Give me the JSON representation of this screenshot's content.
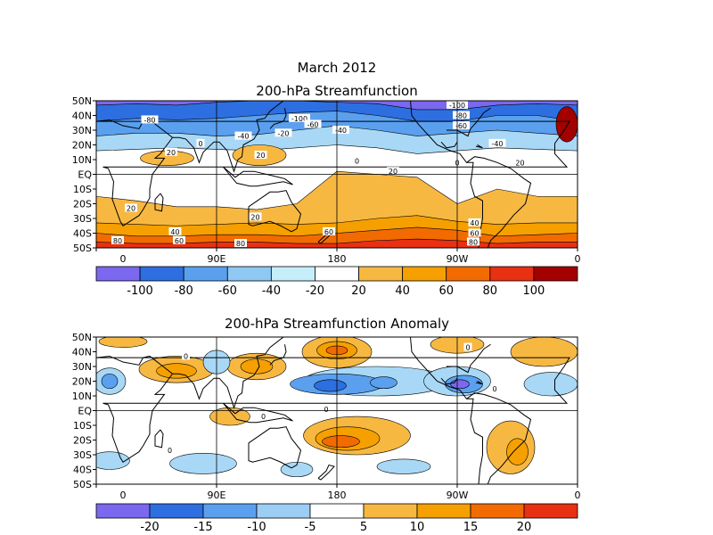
{
  "title": "March 2012",
  "colors": {
    "c1": "#7b68ee",
    "c2": "#2d6fe0",
    "c3": "#5aa0ef",
    "c4": "#a8d8f6",
    "c5": "#ffffff",
    "c6": "#f7b842",
    "c7": "#f5a000",
    "c8": "#f26b00",
    "c9": "#e83012",
    "c10": "#a30000",
    "coast": "#000000",
    "grid": "#000000"
  },
  "maps": [
    {
      "title": "200-hPa Streamfunction",
      "lat_labels": [
        "50N",
        "40N",
        "30N",
        "20N",
        "10N",
        "EQ",
        "10S",
        "20S",
        "30S",
        "40S",
        "50S"
      ],
      "lon_labels": [
        "0",
        "90E",
        "180",
        "90W",
        "0"
      ],
      "colorbar": {
        "labels": [
          "-100",
          "-80",
          "-60",
          "-40",
          "-20",
          "20",
          "40",
          "60",
          "80",
          "100"
        ],
        "colors": [
          "#7b68ee",
          "#2d6fe0",
          "#5aa0ef",
          "#8ec8f3",
          "#c6eefa",
          "#ffffff",
          "#f7b842",
          "#f5a000",
          "#f26b00",
          "#e83012",
          "#a30000"
        ]
      },
      "contour_labels": [
        {
          "lon": 40,
          "lat": 37,
          "text": "-80"
        },
        {
          "lon": -8,
          "lat": 26,
          "text": "-60"
        },
        {
          "lon": -6,
          "lat": 18,
          "text": "-20"
        },
        {
          "lon": 110,
          "lat": 26,
          "text": "-40"
        },
        {
          "lon": 140,
          "lat": 28,
          "text": "-20"
        },
        {
          "lon": 152,
          "lat": 38,
          "text": "-100"
        },
        {
          "lon": 162,
          "lat": 34,
          "text": "-60"
        },
        {
          "lon": 183,
          "lat": 30,
          "text": "-40"
        },
        {
          "lon": 270,
          "lat": 47,
          "text": "-100"
        },
        {
          "lon": 273,
          "lat": 40,
          "text": "-80"
        },
        {
          "lon": 273,
          "lat": 33,
          "text": "-60"
        },
        {
          "lon": 300,
          "lat": 21,
          "text": "-40"
        },
        {
          "lon": 56,
          "lat": 15,
          "text": "20"
        },
        {
          "lon": 123,
          "lat": 13,
          "text": "20"
        },
        {
          "lon": 78,
          "lat": 21,
          "text": "0"
        },
        {
          "lon": 195,
          "lat": 9,
          "text": "0"
        },
        {
          "lon": 222,
          "lat": 2,
          "text": "20"
        },
        {
          "lon": 270,
          "lat": 8,
          "text": "0"
        },
        {
          "lon": 317,
          "lat": 8,
          "text": "20"
        },
        {
          "lon": 26,
          "lat": -23,
          "text": "20"
        },
        {
          "lon": 119,
          "lat": -29,
          "text": "20"
        },
        {
          "lon": 59,
          "lat": -39,
          "text": "40"
        },
        {
          "lon": 62,
          "lat": -45,
          "text": "60"
        },
        {
          "lon": 108,
          "lat": -47,
          "text": "80"
        },
        {
          "lon": 174,
          "lat": -39,
          "text": "60"
        },
        {
          "lon": 283,
          "lat": -33,
          "text": "40"
        },
        {
          "lon": 283,
          "lat": -40,
          "text": "60"
        },
        {
          "lon": 282,
          "lat": -46,
          "text": "80"
        },
        {
          "lon": 16,
          "lat": -45,
          "text": "80"
        }
      ]
    },
    {
      "title": "200-hPa Streamfunction Anomaly",
      "lat_labels": [
        "50N",
        "40N",
        "30N",
        "20N",
        "10N",
        "EQ",
        "10S",
        "20S",
        "30S",
        "40S",
        "50S"
      ],
      "lon_labels": [
        "0",
        "90E",
        "180",
        "90W",
        "0"
      ],
      "colorbar": {
        "labels": [
          "-20",
          "-15",
          "-10",
          "-5",
          "5",
          "10",
          "15",
          "20"
        ],
        "colors": [
          "#7b68ee",
          "#2d6fe0",
          "#5aa0ef",
          "#9ccdf4",
          "#ffffff",
          "#f7b842",
          "#f5a000",
          "#f26b00",
          "#e83012"
        ]
      },
      "contour_labels": [
        {
          "lon": 67,
          "lat": 37,
          "text": "0"
        },
        {
          "lon": 278,
          "lat": 43,
          "text": "0"
        },
        {
          "lon": 298,
          "lat": 15,
          "text": "0"
        },
        {
          "lon": 172,
          "lat": 1,
          "text": "0"
        },
        {
          "lon": 55,
          "lat": -27,
          "text": "0"
        },
        {
          "lon": 125,
          "lat": -4,
          "text": "0"
        }
      ]
    }
  ]
}
